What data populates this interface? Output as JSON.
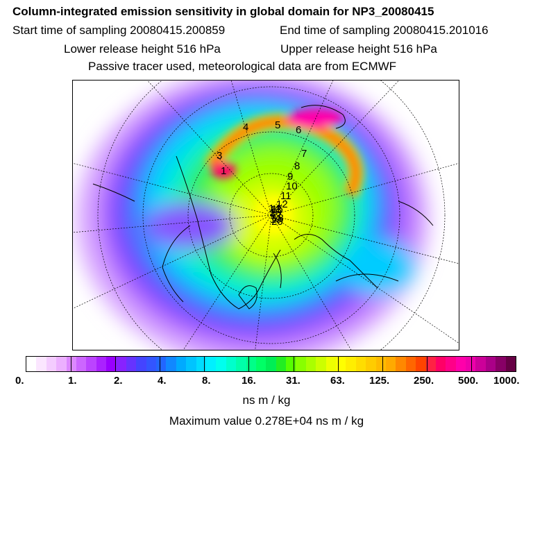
{
  "header": {
    "title": "Column-integrated emission sensitivity in global domain for NP3_20080415",
    "start_time": "Start time of sampling 20080415.200859",
    "end_time": "End time of sampling 20080415.201016",
    "lower_height": "Lower release height  516 hPa",
    "upper_height": "Upper release height  516 hPa",
    "tracer_info": "Passive tracer used, meteorological data are from ECMWF"
  },
  "map": {
    "projection": "polar stereographic (north)",
    "trajectory_labels": [
      "1",
      "2",
      "3",
      "4",
      "5",
      "6",
      "7",
      "8",
      "9",
      "10",
      "11",
      "12",
      "13",
      "14",
      "15",
      "16",
      "17",
      "18",
      "19",
      "20"
    ]
  },
  "colorbar": {
    "tick_labels": [
      "0.",
      "1.",
      "2.",
      "4.",
      "8.",
      "16.",
      "31.",
      "63.",
      "125.",
      "250.",
      "500.",
      "1000."
    ],
    "colors": [
      "#ffffff",
      "#fbe6ff",
      "#f4ccff",
      "#ecb0ff",
      "#dc88ff",
      "#cc66ff",
      "#bb44ff",
      "#aa22ff",
      "#9900ff",
      "#8822ff",
      "#6633ff",
      "#4444ff",
      "#3355ff",
      "#2266ff",
      "#1188ff",
      "#00aaff",
      "#00c4ff",
      "#00ddff",
      "#00f0ff",
      "#00ffee",
      "#00ffcc",
      "#00ffaa",
      "#00ff88",
      "#00ff66",
      "#00ee55",
      "#22ee22",
      "#55ff00",
      "#88ff00",
      "#aaff00",
      "#ccff00",
      "#eeff00",
      "#ffff00",
      "#ffee00",
      "#ffdd00",
      "#ffcc00",
      "#ffbb00",
      "#ffaa00",
      "#ff8800",
      "#ff6600",
      "#ff4400",
      "#ff2244",
      "#ff0066",
      "#ff0088",
      "#ff00aa",
      "#ee00aa",
      "#cc0099",
      "#aa0088",
      "#880066",
      "#660044"
    ],
    "units": "ns m / kg"
  },
  "footer": {
    "max_value": "Maximum value  0.278E+04 ns m / kg"
  }
}
